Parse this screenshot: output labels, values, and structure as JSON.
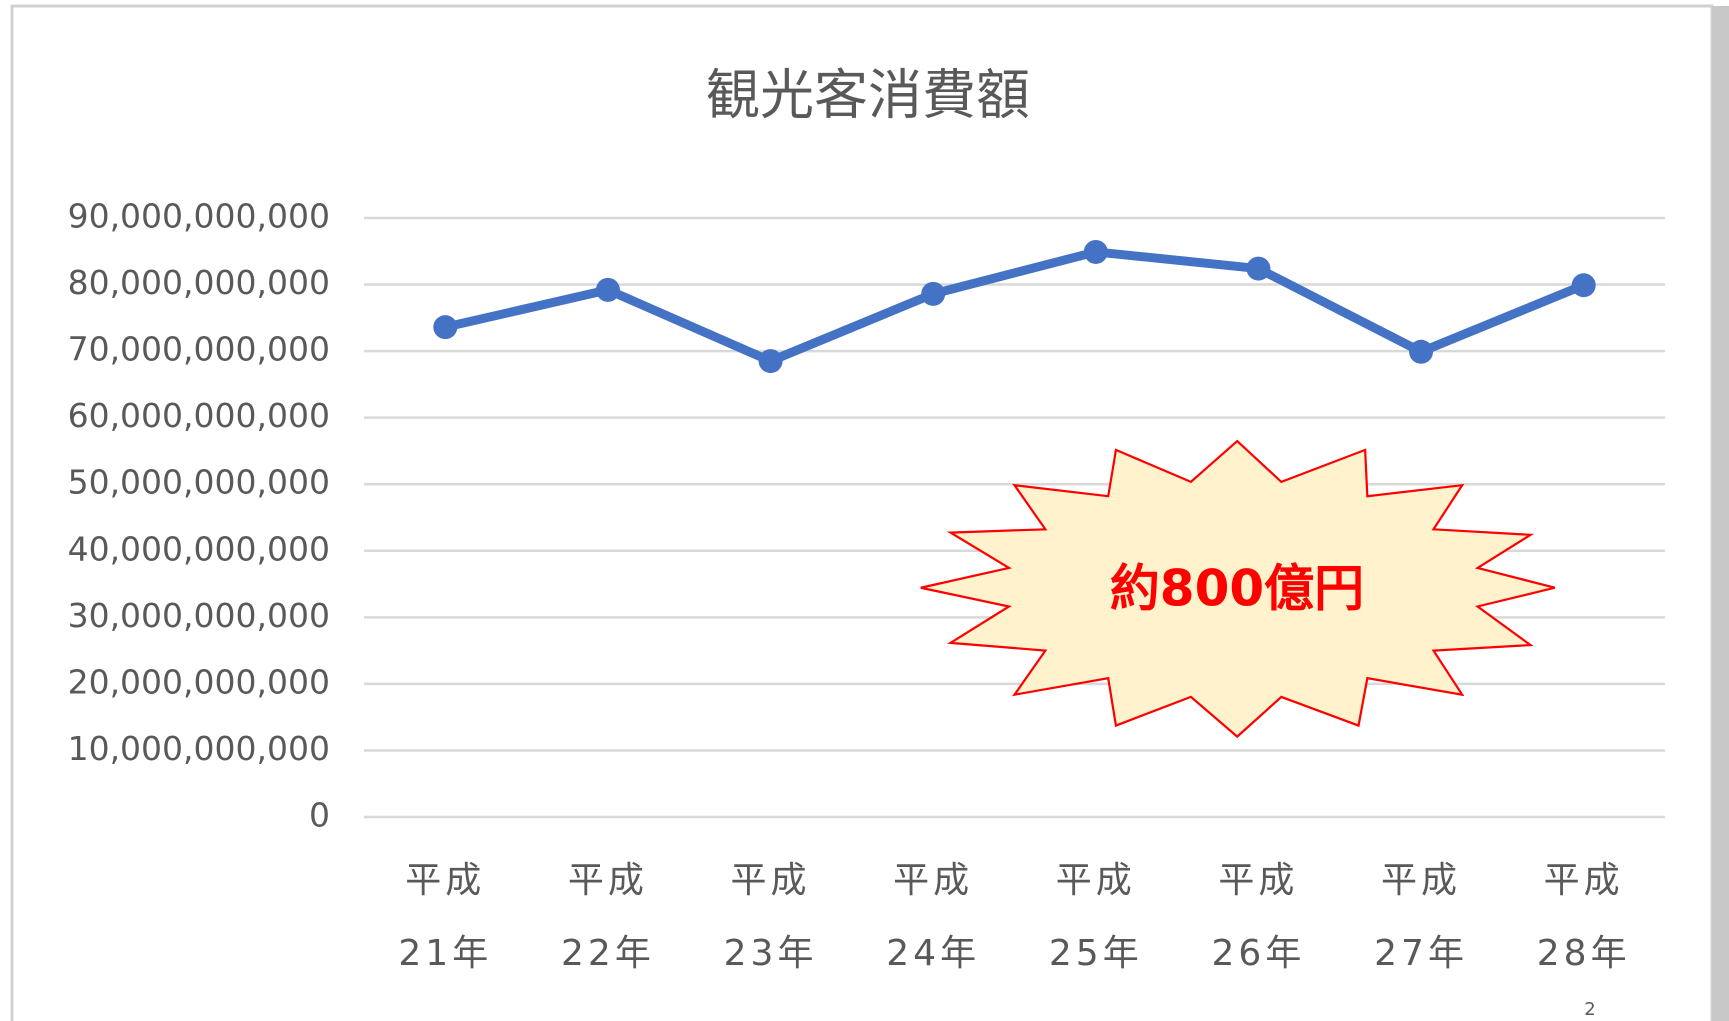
{
  "chart_data": {
    "type": "line",
    "title": "観光客消費額",
    "categories": [
      "平成21年",
      "平成22年",
      "平成23年",
      "平成24年",
      "平成25年",
      "平成26年",
      "平成27年",
      "平成28年"
    ],
    "series": [
      {
        "name": "観光客消費額",
        "color": "#4472c4",
        "values": [
          73600000000,
          79200000000,
          68500000000,
          78600000000,
          84900000000,
          82400000000,
          69900000000,
          79900000000
        ]
      }
    ],
    "ylim": [
      0,
      90000000000
    ],
    "yticks": [
      0,
      {
        "value": 10000000000,
        "label": "10,000,000,000"
      },
      {
        "value": 20000000000,
        "label": "20,000,000,000"
      },
      {
        "value": 30000000000,
        "label": "30,000,000,000"
      },
      {
        "value": 40000000000,
        "label": "40,000,000,000"
      },
      {
        "value": 50000000000,
        "label": "50,000,000,000"
      },
      {
        "value": 60000000000,
        "label": "60,000,000,000"
      },
      {
        "value": 70000000000,
        "label": "70,000,000,000"
      },
      {
        "value": 80000000000,
        "label": "80,000,000,000"
      },
      {
        "value": 90000000000,
        "label": "90,000,000,000"
      }
    ],
    "grid": true,
    "annotations": [
      "約800億円"
    ],
    "page_number": "2"
  }
}
